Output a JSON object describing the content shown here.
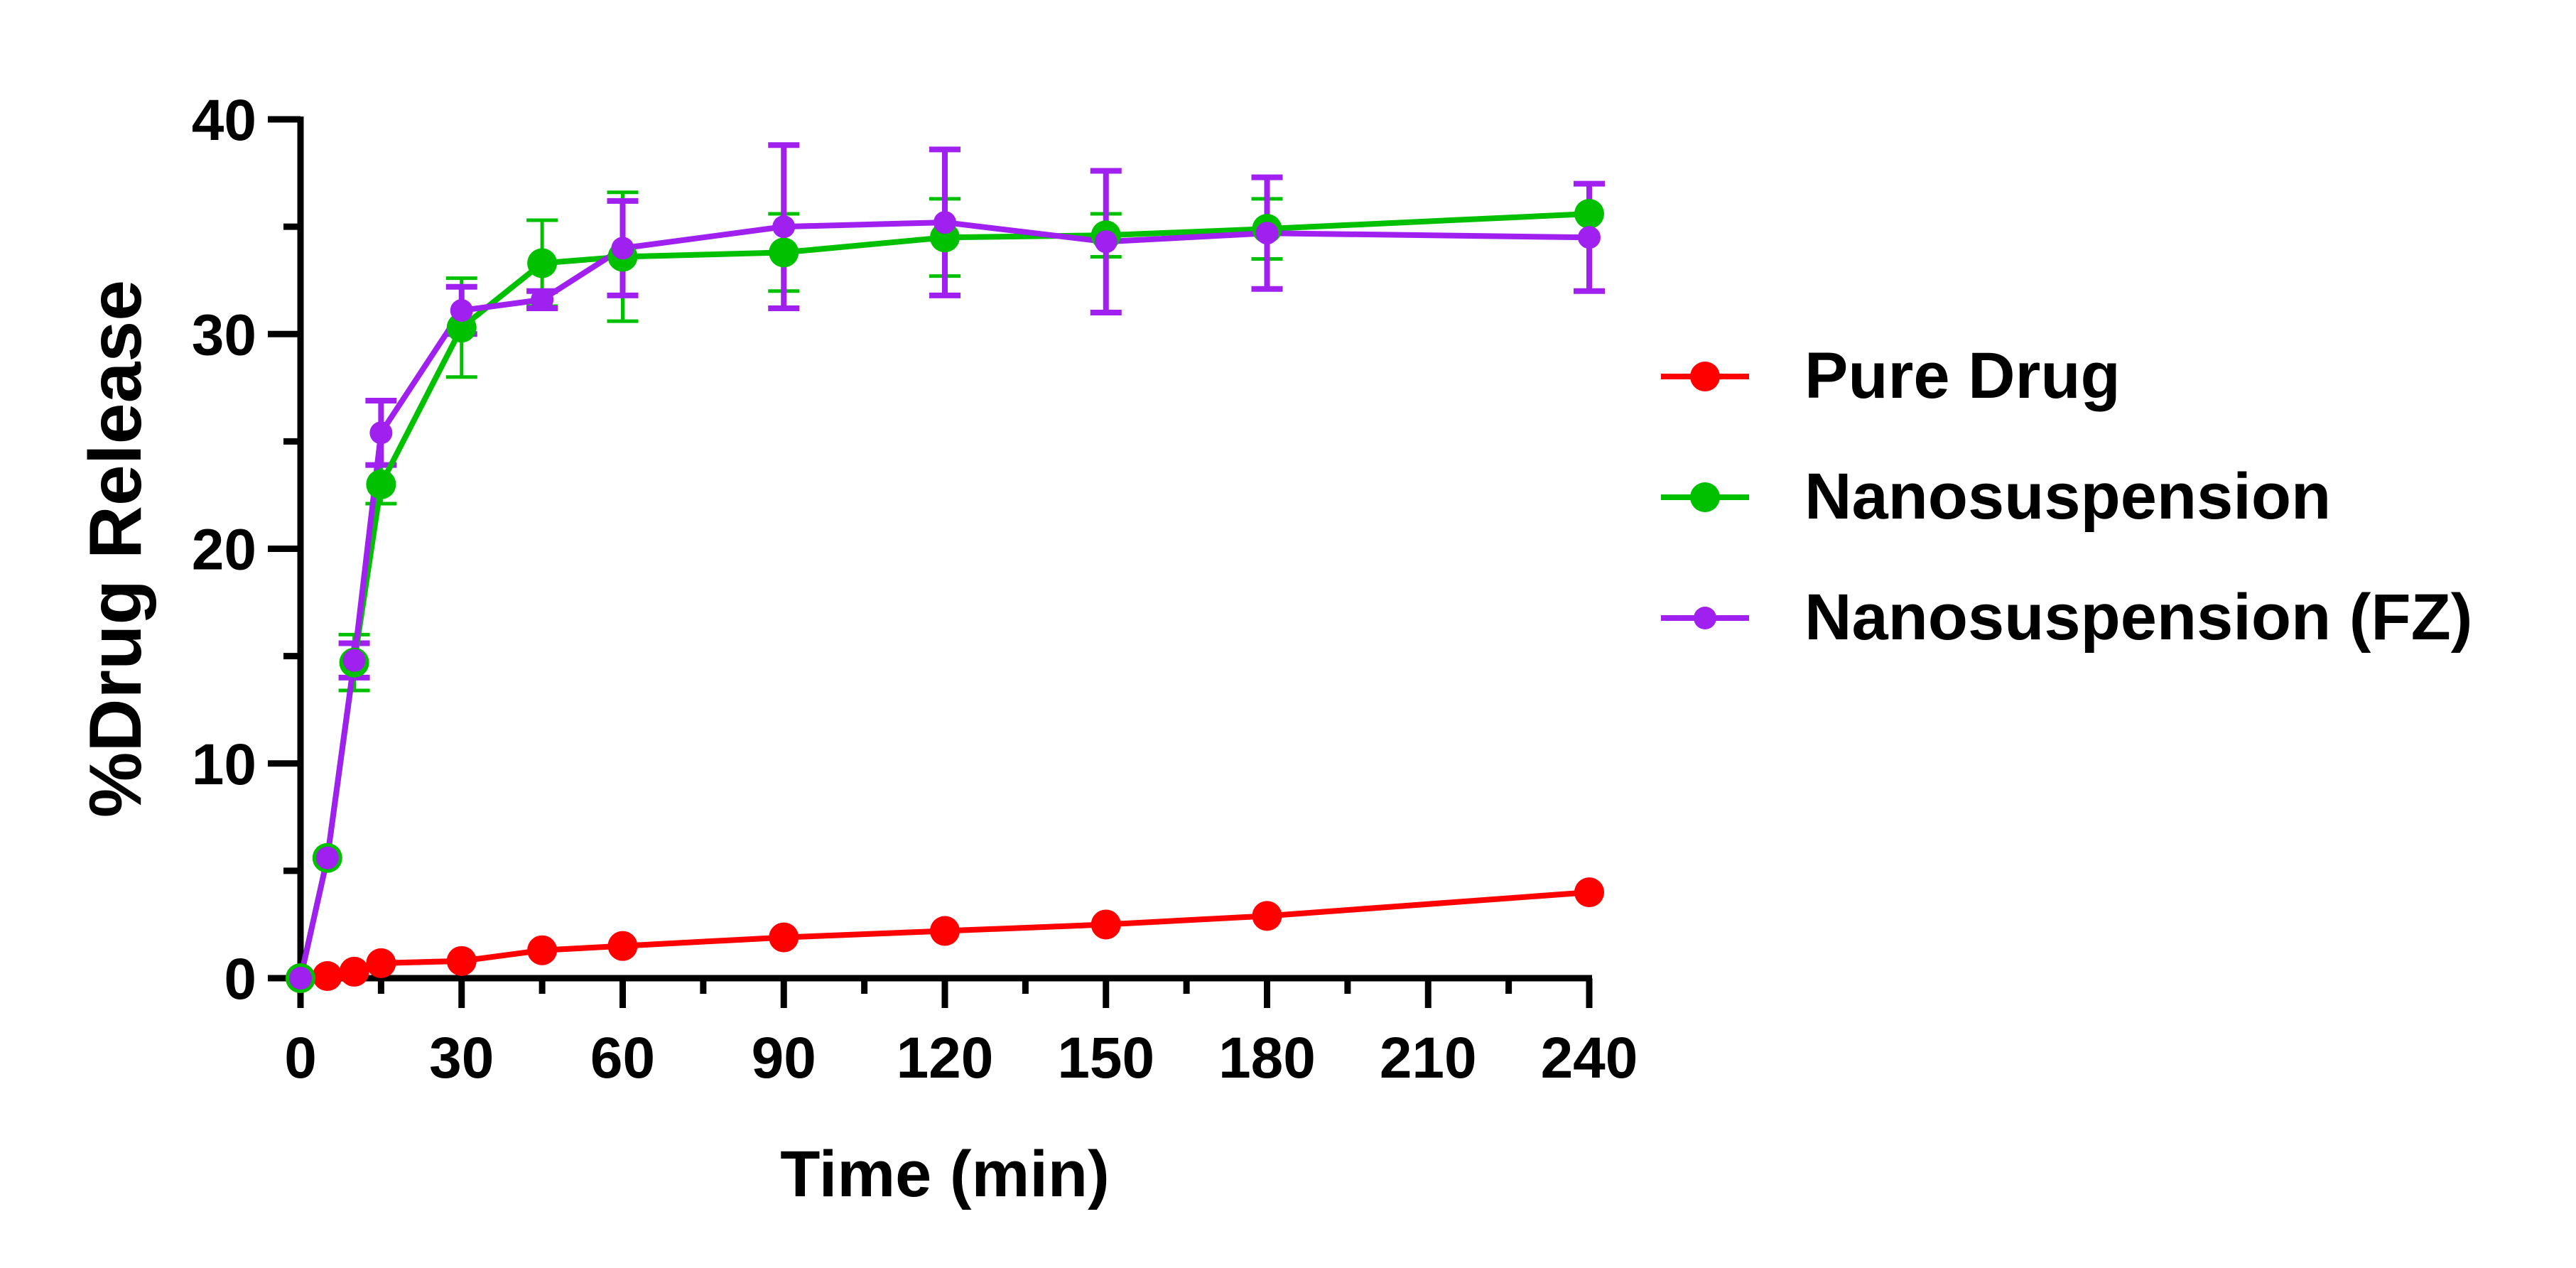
{
  "chart_data": {
    "type": "line",
    "title": "",
    "xlabel": "Time (min)",
    "ylabel": "%Drug Release",
    "xlim": [
      0,
      240
    ],
    "ylim": [
      0,
      40
    ],
    "x_ticks": [
      0,
      30,
      60,
      90,
      120,
      150,
      180,
      210,
      240
    ],
    "x_tick_labels": [
      "0",
      "30",
      "60",
      "90",
      "120",
      "150",
      "180",
      "210",
      "240"
    ],
    "y_ticks": [
      0,
      10,
      20,
      30,
      40
    ],
    "y_tick_labels": [
      "0",
      "10",
      "20",
      "30",
      "40"
    ],
    "grid": false,
    "legend_position": "right",
    "series": [
      {
        "name": "Pure Drug",
        "color": "#ff0000",
        "marker": "circle-large",
        "x": [
          0,
          5,
          10,
          15,
          30,
          45,
          60,
          90,
          120,
          150,
          180,
          240
        ],
        "y": [
          0.0,
          0.1,
          0.3,
          0.7,
          0.8,
          1.3,
          1.5,
          1.9,
          2.2,
          2.5,
          2.9,
          4.0
        ],
        "error": [
          0,
          0,
          0,
          0,
          0,
          0,
          0,
          0,
          0,
          0,
          0,
          0
        ]
      },
      {
        "name": "Nanosuspension",
        "color": "#00c000",
        "marker": "circle-large",
        "x": [
          0,
          5,
          10,
          15,
          30,
          45,
          60,
          90,
          120,
          150,
          180,
          240
        ],
        "y": [
          0.0,
          5.6,
          14.7,
          23.0,
          30.3,
          33.3,
          33.6,
          33.8,
          34.5,
          34.6,
          34.9,
          35.6
        ],
        "error": [
          0,
          0,
          1.3,
          0.9,
          2.3,
          2.0,
          3.0,
          1.8,
          1.8,
          1.0,
          1.4,
          0
        ]
      },
      {
        "name": "Nanosuspension (FZ)",
        "color": "#a020f0",
        "marker": "circle-small",
        "x": [
          0,
          5,
          10,
          15,
          30,
          45,
          60,
          90,
          120,
          150,
          180,
          240
        ],
        "y": [
          0.0,
          5.6,
          14.8,
          25.4,
          31.1,
          31.6,
          34.0,
          35.0,
          35.2,
          34.3,
          34.7,
          34.5
        ],
        "error": [
          0,
          0,
          0.8,
          1.5,
          1.1,
          0.4,
          2.2,
          3.8,
          3.4,
          3.3,
          2.6,
          2.5
        ]
      }
    ]
  }
}
